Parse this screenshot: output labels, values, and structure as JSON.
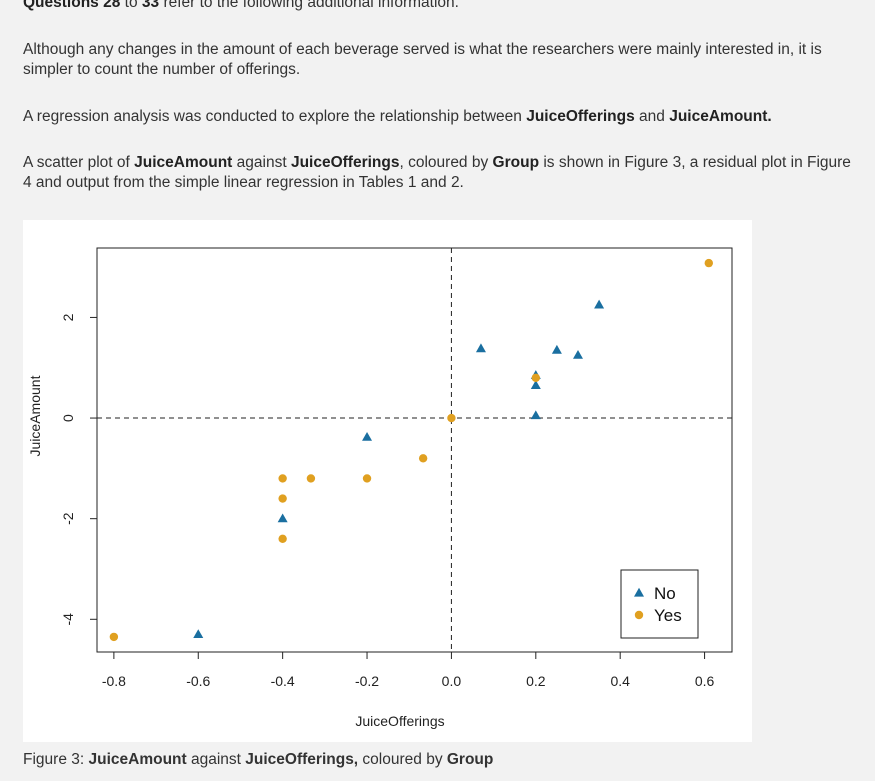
{
  "intro": {
    "heading_bold_1": "Questions 28",
    "heading_mid": " to ",
    "heading_bold_2": "33",
    "heading_rest": " refer to the following additional information.",
    "p1": "Although any changes in the amount of each beverage served is what the researchers were mainly interested in, it is simpler to count the number of offerings.",
    "p2_pre": "A regression analysis was conducted to explore the relationship between ",
    "p2_b1": "JuiceOfferings",
    "p2_mid": " and ",
    "p2_b2": "JuiceAmount.",
    "p3_pre": "A scatter plot of ",
    "p3_b1": "JuiceAmount",
    "p3_mid1": " against ",
    "p3_b2": "JuiceOfferings",
    "p3_mid2": ", coloured by ",
    "p3_b3": "Group",
    "p3_post": " is shown in Figure 3, a residual plot in Figure 4 and output from the simple linear regression in Tables 1 and 2."
  },
  "caption": {
    "prefix": "Figure 3: ",
    "b1": "JuiceAmount",
    "mid1": " against ",
    "b2": "JuiceOfferings,",
    "mid2": " coloured by ",
    "b3": "Group"
  },
  "chart_data": {
    "type": "scatter",
    "xlabel": "JuiceOfferings",
    "ylabel": "JuiceAmount",
    "xlim": [
      -0.84,
      0.665
    ],
    "ylim": [
      -4.65,
      3.38
    ],
    "xticks": [
      -0.8,
      -0.6,
      -0.4,
      -0.2,
      0.0,
      0.2,
      0.4,
      0.6
    ],
    "xtick_labels": [
      "-0.8",
      "-0.6",
      "-0.4",
      "-0.2",
      "0.0",
      "0.2",
      "0.4",
      "0.6"
    ],
    "yticks": [
      -4,
      -2,
      0,
      2
    ],
    "ytick_labels": [
      "-4",
      "-2",
      "0",
      "2"
    ],
    "reference_lines": {
      "x": 0,
      "y": 0,
      "style": "dashed"
    },
    "legend_position": "bottom-right",
    "series": [
      {
        "name": "No",
        "marker": "triangle",
        "color": "#1a6fa0",
        "points": [
          [
            -0.6,
            -4.3
          ],
          [
            -0.4,
            -2.0
          ],
          [
            -0.2,
            -0.38
          ],
          [
            0.07,
            1.38
          ],
          [
            0.2,
            0.85
          ],
          [
            0.2,
            0.65
          ],
          [
            0.2,
            0.05
          ],
          [
            0.25,
            1.35
          ],
          [
            0.3,
            1.25
          ],
          [
            0.35,
            2.25
          ]
        ]
      },
      {
        "name": "Yes",
        "marker": "circle",
        "color": "#e0a020",
        "points": [
          [
            -0.8,
            -4.35
          ],
          [
            -0.4,
            -1.2
          ],
          [
            -0.4,
            -1.6
          ],
          [
            -0.4,
            -2.4
          ],
          [
            -0.333,
            -1.2
          ],
          [
            -0.2,
            -1.2
          ],
          [
            -0.067,
            -0.8
          ],
          [
            0.0,
            0.0
          ],
          [
            0.2,
            0.8
          ],
          [
            0.61,
            3.08
          ]
        ]
      }
    ]
  }
}
